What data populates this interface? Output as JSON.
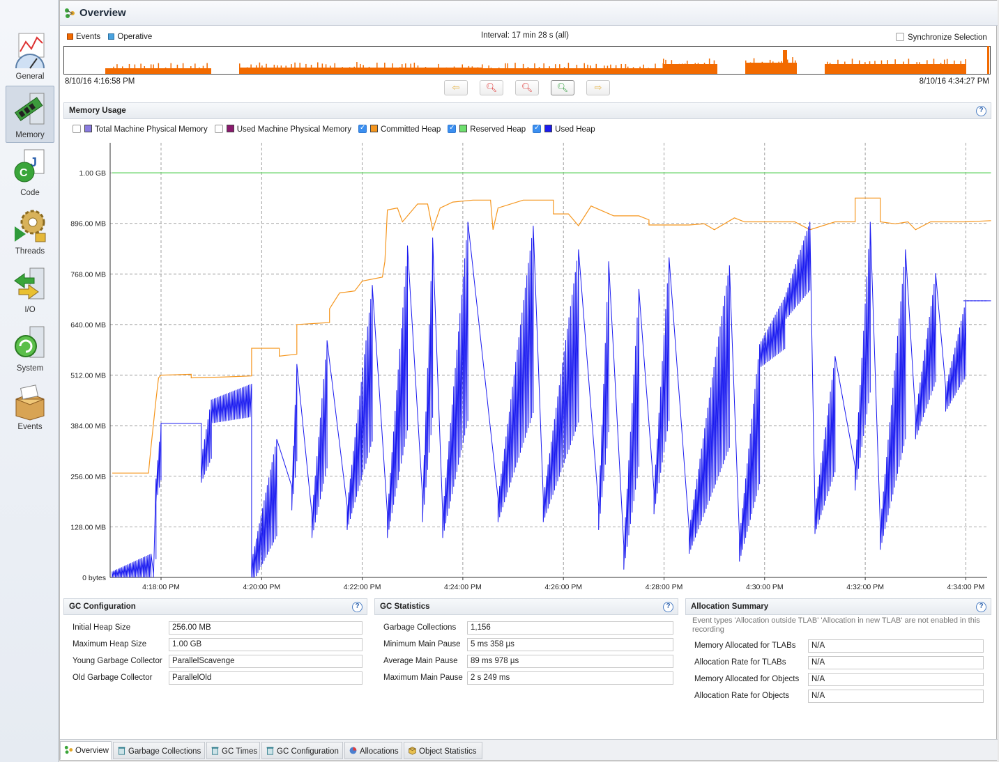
{
  "sidebar": {
    "items": [
      {
        "label": "General",
        "icon": "gauge-chart-icon"
      },
      {
        "label": "Memory",
        "icon": "memory-chip-icon",
        "active": true
      },
      {
        "label": "Code",
        "icon": "java-code-icon"
      },
      {
        "label": "Threads",
        "icon": "gears-lock-icon"
      },
      {
        "label": "I/O",
        "icon": "io-arrows-icon"
      },
      {
        "label": "System",
        "icon": "system-refresh-icon"
      },
      {
        "label": "Events",
        "icon": "box-events-icon"
      }
    ]
  },
  "header": {
    "title": "Overview"
  },
  "timeline": {
    "legend": [
      {
        "label": "Events",
        "color": "#f26a00"
      },
      {
        "label": "Operative",
        "color": "#4aa3df"
      }
    ],
    "interval": "Interval: 17 min 28 s (all)",
    "sync_label": "Synchronize Selection",
    "start_time": "8/10/16 4:16:58 PM",
    "end_time": "8/10/16 4:34:27 PM"
  },
  "memory_usage": {
    "title": "Memory Usage",
    "series_toggles": [
      {
        "label": "Total Machine Physical Memory",
        "checked": false,
        "color": "#8a7be0"
      },
      {
        "label": "Used Machine Physical Memory",
        "checked": false,
        "color": "#8a1a6e"
      },
      {
        "label": "Committed Heap",
        "checked": true,
        "color": "#f5961e"
      },
      {
        "label": "Reserved Heap",
        "checked": true,
        "color": "#6ee06e"
      },
      {
        "label": "Used Heap",
        "checked": true,
        "color": "#1a1af0"
      }
    ]
  },
  "chart_data": {
    "type": "line",
    "y_ticks": [
      "0 bytes",
      "128.00 MB",
      "256.00 MB",
      "384.00 MB",
      "512.00 MB",
      "640.00 MB",
      "768.00 MB",
      "896.00 MB",
      "1.00 GB"
    ],
    "x_ticks": [
      "4:18:00 PM",
      "4:20:00 PM",
      "4:22:00 PM",
      "4:24:00 PM",
      "4:26:00 PM",
      "4:28:00 PM",
      "4:30:00 PM",
      "4:32:00 PM",
      "4:34:00 PM"
    ],
    "ylim_mb": [
      0,
      1100
    ],
    "grid": true,
    "series": [
      {
        "name": "Reserved Heap",
        "color": "#5ad25a",
        "values_mb": [
          [
            -0.97,
            1024
          ],
          [
            16.5,
            1024
          ]
        ]
      },
      {
        "name": "Committed Heap",
        "color": "#f5961e",
        "values_mb": [
          [
            -0.97,
            264
          ],
          [
            -0.25,
            264
          ],
          [
            -0.2,
            330
          ],
          [
            -0.1,
            450
          ],
          [
            -0.05,
            505
          ],
          [
            0,
            512
          ],
          [
            0.6,
            514
          ],
          [
            0.6,
            505
          ],
          [
            1.2,
            507
          ],
          [
            1.8,
            510
          ],
          [
            1.8,
            580
          ],
          [
            2.35,
            580
          ],
          [
            2.35,
            560
          ],
          [
            2.7,
            565
          ],
          [
            2.7,
            640
          ],
          [
            3.35,
            645
          ],
          [
            3.35,
            680
          ],
          [
            3.55,
            720
          ],
          [
            3.85,
            725
          ],
          [
            4.0,
            750
          ],
          [
            4.4,
            760
          ],
          [
            4.45,
            800
          ],
          [
            4.5,
            930
          ],
          [
            4.7,
            935
          ],
          [
            4.8,
            900
          ],
          [
            5.1,
            945
          ],
          [
            5.3,
            945
          ],
          [
            5.4,
            880
          ],
          [
            5.55,
            935
          ],
          [
            5.8,
            950
          ],
          [
            6.2,
            955
          ],
          [
            6.55,
            955
          ],
          [
            6.6,
            880
          ],
          [
            6.7,
            935
          ],
          [
            7.2,
            955
          ],
          [
            7.8,
            955
          ],
          [
            7.8,
            920
          ],
          [
            8.1,
            920
          ],
          [
            8.3,
            890
          ],
          [
            8.55,
            940
          ],
          [
            9.0,
            915
          ],
          [
            9.5,
            915
          ],
          [
            9.7,
            905
          ],
          [
            9.7,
            892
          ],
          [
            10.5,
            892
          ],
          [
            10.8,
            895
          ],
          [
            11.0,
            880
          ],
          [
            11.4,
            910
          ],
          [
            11.6,
            900
          ],
          [
            12.3,
            900
          ],
          [
            12.6,
            900
          ],
          [
            12.9,
            880
          ],
          [
            13.4,
            900
          ],
          [
            13.8,
            900
          ],
          [
            13.8,
            960
          ],
          [
            14.3,
            960
          ],
          [
            14.3,
            900
          ],
          [
            14.6,
            895
          ],
          [
            14.85,
            900
          ],
          [
            15.0,
            880
          ],
          [
            15.3,
            900
          ],
          [
            16.0,
            900
          ],
          [
            16.5,
            903
          ]
        ]
      },
      {
        "name": "Used Heap",
        "color": "#1a1af0",
        "values_mb": [
          [
            -0.97,
            15
          ],
          [
            -0.2,
            60
          ],
          [
            -0.15,
            10
          ],
          [
            -0.1,
            250
          ],
          [
            0,
            390
          ],
          [
            0.8,
            390
          ],
          [
            0.8,
            300
          ],
          [
            1.0,
            450
          ],
          [
            1.8,
            490
          ],
          [
            1.8,
            40
          ],
          [
            2.3,
            350
          ],
          [
            2.6,
            230
          ],
          [
            2.7,
            540
          ],
          [
            3.0,
            160
          ],
          [
            3.3,
            600
          ],
          [
            3.7,
            180
          ],
          [
            4.2,
            740
          ],
          [
            4.5,
            160
          ],
          [
            4.9,
            840
          ],
          [
            5.2,
            200
          ],
          [
            5.4,
            860
          ],
          [
            5.6,
            160
          ],
          [
            6.1,
            900
          ],
          [
            6.7,
            200
          ],
          [
            7.4,
            890
          ],
          [
            7.6,
            200
          ],
          [
            8.3,
            830
          ],
          [
            8.7,
            180
          ],
          [
            8.9,
            800
          ],
          [
            9.2,
            80
          ],
          [
            9.5,
            730
          ],
          [
            9.8,
            220
          ],
          [
            10.1,
            810
          ],
          [
            10.5,
            120
          ],
          [
            11.3,
            790
          ],
          [
            11.5,
            100
          ],
          [
            11.9,
            590
          ],
          [
            12.4,
            710
          ],
          [
            12.9,
            900
          ],
          [
            13.0,
            170
          ],
          [
            13.4,
            560
          ],
          [
            13.8,
            280
          ],
          [
            14.1,
            900
          ],
          [
            14.3,
            130
          ],
          [
            14.8,
            830
          ],
          [
            15.0,
            410
          ],
          [
            15.4,
            770
          ],
          [
            15.6,
            480
          ],
          [
            16.0,
            700
          ],
          [
            16.5,
            700
          ]
        ]
      }
    ]
  },
  "gc_configuration": {
    "title": "GC Configuration",
    "rows": [
      {
        "label": "Initial Heap Size",
        "value": "256.00 MB"
      },
      {
        "label": "Maximum Heap Size",
        "value": "1.00 GB"
      },
      {
        "label": "Young Garbage Collector",
        "value": "ParallelScavenge"
      },
      {
        "label": "Old Garbage Collector",
        "value": "ParallelOld"
      }
    ]
  },
  "gc_statistics": {
    "title": "GC Statistics",
    "rows": [
      {
        "label": "Garbage Collections",
        "value": "1,156"
      },
      {
        "label": "Minimum Main Pause",
        "value": "5 ms 358 µs"
      },
      {
        "label": "Average Main Pause",
        "value": "89 ms 978 µs"
      },
      {
        "label": "Maximum Main Pause",
        "value": "2 s 249 ms"
      }
    ]
  },
  "allocation_summary": {
    "title": "Allocation Summary",
    "note": "Event types 'Allocation outside TLAB' 'Allocation in new TLAB' are not enabled in this recording",
    "rows": [
      {
        "label": "Memory Allocated for TLABs",
        "value": "N/A"
      },
      {
        "label": "Allocation Rate for TLABs",
        "value": "N/A"
      },
      {
        "label": "Memory Allocated for Objects",
        "value": "N/A"
      },
      {
        "label": "Allocation Rate for Objects",
        "value": "N/A"
      }
    ]
  },
  "tabs": [
    {
      "label": "Overview",
      "icon": "overview-icon",
      "active": true
    },
    {
      "label": "Garbage Collections",
      "icon": "trash-can-icon"
    },
    {
      "label": "GC Times",
      "icon": "trash-can-icon"
    },
    {
      "label": "GC Configuration",
      "icon": "trash-can-icon"
    },
    {
      "label": "Allocations",
      "icon": "pie-chart-icon"
    },
    {
      "label": "Object Statistics",
      "icon": "cube-icon"
    }
  ]
}
